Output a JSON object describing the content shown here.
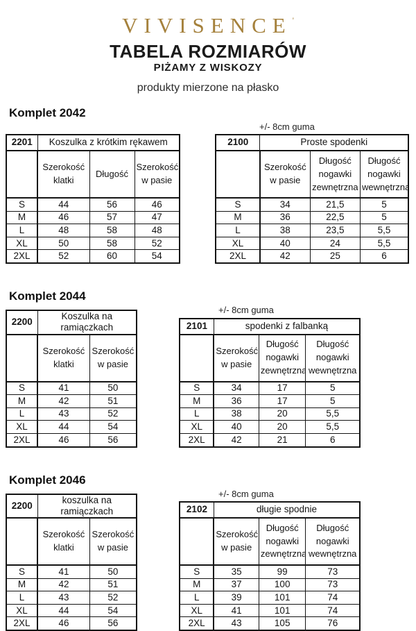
{
  "brand": {
    "logo": "VIVISENCE",
    "logo_mark": "'",
    "logo_color": "#A5813C"
  },
  "header": {
    "title": "TABELA ROZMIARÓW",
    "subtitle": "PIŻAMY Z WISKOZY",
    "note": "produkty mierzone na płasko"
  },
  "elastic_note": "+/- 8cm guma",
  "sizes": [
    "S",
    "M",
    "L",
    "XL",
    "2XL"
  ],
  "sections": [
    {
      "title": "Komplet 2042",
      "left": {
        "code": "2201",
        "name": "Koszulka z krótkim rękawem",
        "columns": [
          "Szerokość klatki",
          "Długość",
          "Szerokość w pasie"
        ],
        "rows": [
          [
            "S",
            "44",
            "56",
            "46"
          ],
          [
            "M",
            "46",
            "57",
            "47"
          ],
          [
            "L",
            "48",
            "58",
            "48"
          ],
          [
            "XL",
            "50",
            "58",
            "52"
          ],
          [
            "2XL",
            "52",
            "60",
            "54"
          ]
        ]
      },
      "right": {
        "code": "2100",
        "name": "Proste spodenki",
        "note": "+/- 8cm guma",
        "columns": [
          "Szerokość w pasie",
          "Długość nogawki zewnętrzna",
          "Długość nogawki wewnętrzna"
        ],
        "rows": [
          [
            "S",
            "34",
            "21,5",
            "5"
          ],
          [
            "M",
            "36",
            "22,5",
            "5"
          ],
          [
            "L",
            "38",
            "23,5",
            "5,5"
          ],
          [
            "XL",
            "40",
            "24",
            "5,5"
          ],
          [
            "2XL",
            "42",
            "25",
            "6"
          ]
        ]
      }
    },
    {
      "title": "Komplet 2044",
      "left": {
        "code": "2200",
        "name": "Koszulka na ramiączkach",
        "columns": [
          "Szerokość klatki",
          "Szerokość w pasie"
        ],
        "rows": [
          [
            "S",
            "41",
            "50"
          ],
          [
            "M",
            "42",
            "51"
          ],
          [
            "L",
            "43",
            "52"
          ],
          [
            "XL",
            "44",
            "54"
          ],
          [
            "2XL",
            "46",
            "56"
          ]
        ]
      },
      "right": {
        "code": "2101",
        "name": "spodenki z falbanką",
        "note": "+/- 8cm guma",
        "columns": [
          "Szerokość w pasie",
          "Długość nogawki zewnętrzna",
          "Długość nogawki wewnętrzna"
        ],
        "rows": [
          [
            "S",
            "34",
            "17",
            "5"
          ],
          [
            "M",
            "36",
            "17",
            "5"
          ],
          [
            "L",
            "38",
            "20",
            "5,5"
          ],
          [
            "XL",
            "40",
            "20",
            "5,5"
          ],
          [
            "2XL",
            "42",
            "21",
            "6"
          ]
        ]
      }
    },
    {
      "title": "Komplet 2046",
      "left": {
        "code": "2200",
        "name": "koszulka na ramiączkach",
        "columns": [
          "Szerokość klatki",
          "Szerokość w pasie"
        ],
        "rows": [
          [
            "S",
            "41",
            "50"
          ],
          [
            "M",
            "42",
            "51"
          ],
          [
            "L",
            "43",
            "52"
          ],
          [
            "XL",
            "44",
            "54"
          ],
          [
            "2XL",
            "46",
            "56"
          ]
        ]
      },
      "right": {
        "code": "2102",
        "name": "długie spodnie",
        "note": "+/- 8cm guma",
        "columns": [
          "Szerokość w pasie",
          "Długość nogawki zewnętrzna",
          "Długość nogawki wewnętrzna"
        ],
        "rows": [
          [
            "S",
            "35",
            "99",
            "73"
          ],
          [
            "M",
            "37",
            "100",
            "73"
          ],
          [
            "L",
            "39",
            "101",
            "74"
          ],
          [
            "XL",
            "41",
            "101",
            "74"
          ],
          [
            "2XL",
            "43",
            "105",
            "76"
          ]
        ]
      }
    }
  ]
}
